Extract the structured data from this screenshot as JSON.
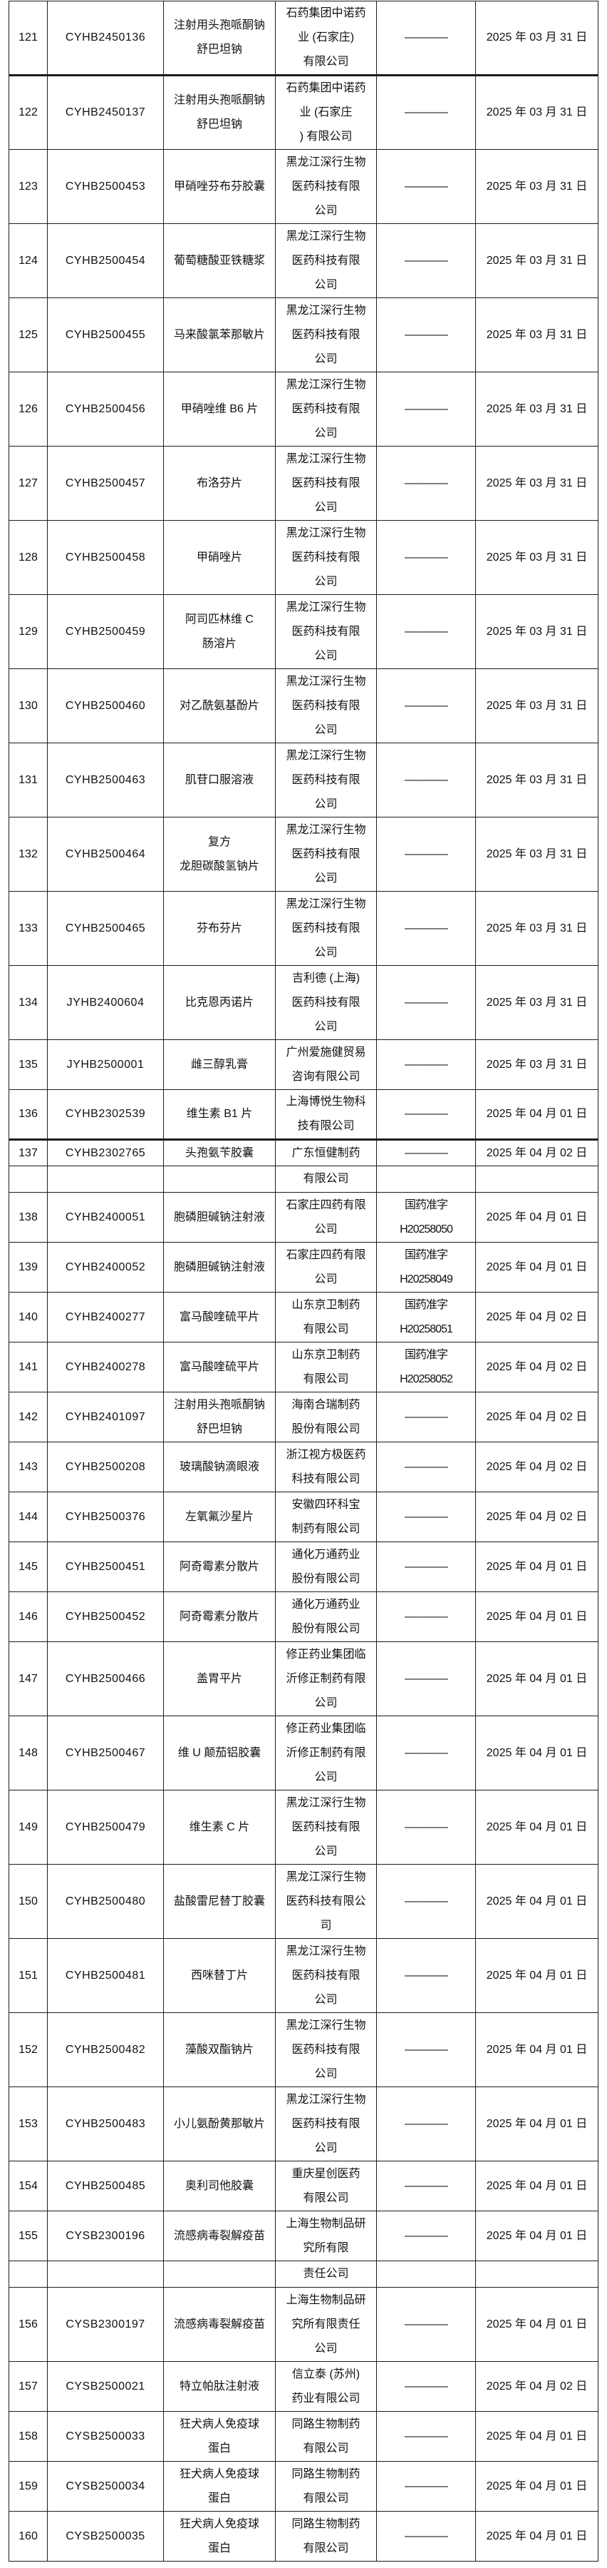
{
  "table": {
    "rows": [
      {
        "no": "121",
        "id": "CYHB2450136",
        "drug": "注射用头孢哌酮钠\n舒巴坦钠",
        "company": "石药集团中诺药\n业 (石家庄)\n有限公司",
        "approval": "————",
        "date": "2025 年 03 月 31 日",
        "thick_top": false
      },
      {
        "no": "122",
        "id": "CYHB2450137",
        "drug": "注射用头孢哌酮钠\n舒巴坦钠",
        "company": "石药集团中诺药\n业 (石家庄\n) 有限公司",
        "approval": "————",
        "date": "2025 年 03 月 31 日",
        "thick_top": true
      },
      {
        "no": "123",
        "id": "CYHB2500453",
        "drug": "甲硝唑芬布芬胶囊",
        "company": "黑龙江深行生物\n医药科技有限\n公司",
        "approval": "————",
        "date": "2025 年 03 月 31 日",
        "thick_top": false
      },
      {
        "no": "124",
        "id": "CYHB2500454",
        "drug": "葡萄糖酸亚铁糖浆",
        "company": "黑龙江深行生物\n医药科技有限\n公司",
        "approval": "————",
        "date": "2025 年 03 月 31 日",
        "thick_top": false
      },
      {
        "no": "125",
        "id": "CYHB2500455",
        "drug": "马来酸氯苯那敏片",
        "company": "黑龙江深行生物\n医药科技有限\n公司",
        "approval": "————",
        "date": "2025 年 03 月 31 日",
        "thick_top": false
      },
      {
        "no": "126",
        "id": "CYHB2500456",
        "drug": "甲硝唑维 B6 片",
        "company": "黑龙江深行生物\n医药科技有限\n公司",
        "approval": "————",
        "date": "2025 年 03 月 31 日",
        "thick_top": false
      },
      {
        "no": "127",
        "id": "CYHB2500457",
        "drug": "布洛芬片",
        "company": "黑龙江深行生物\n医药科技有限\n公司",
        "approval": "————",
        "date": "2025 年 03 月 31 日",
        "thick_top": false
      },
      {
        "no": "128",
        "id": "CYHB2500458",
        "drug": "甲硝唑片",
        "company": "黑龙江深行生物\n医药科技有限\n公司",
        "approval": "————",
        "date": "2025 年 03 月 31 日",
        "thick_top": false
      },
      {
        "no": "129",
        "id": "CYHB2500459",
        "drug": "阿司匹林维 C\n肠溶片",
        "company": "黑龙江深行生物\n医药科技有限\n公司",
        "approval": "————",
        "date": "2025 年 03 月 31 日",
        "thick_top": false
      },
      {
        "no": "130",
        "id": "CYHB2500460",
        "drug": "对乙酰氨基酚片",
        "company": "黑龙江深行生物\n医药科技有限\n公司",
        "approval": "————",
        "date": "2025 年 03 月 31 日",
        "thick_top": false
      },
      {
        "no": "131",
        "id": "CYHB2500463",
        "drug": "肌苷口服溶液",
        "company": "黑龙江深行生物\n医药科技有限\n公司",
        "approval": "————",
        "date": "2025 年 03 月 31 日",
        "thick_top": false
      },
      {
        "no": "132",
        "id": "CYHB2500464",
        "drug": "复方\n龙胆碳酸氢钠片",
        "company": "黑龙江深行生物\n医药科技有限\n公司",
        "approval": "————",
        "date": "2025 年 03 月 31 日",
        "thick_top": false
      },
      {
        "no": "133",
        "id": "CYHB2500465",
        "drug": "芬布芬片",
        "company": "黑龙江深行生物\n医药科技有限\n公司",
        "approval": "————",
        "date": "2025 年 03 月 31 日",
        "thick_top": false
      },
      {
        "no": "134",
        "id": "JYHB2400604",
        "drug": "比克恩丙诺片",
        "company": "吉利德 (上海)\n医药科技有限\n公司",
        "approval": "————",
        "date": "2025 年 03 月 31 日",
        "thick_top": false
      },
      {
        "no": "135",
        "id": "JYHB2500001",
        "drug": "雌三醇乳膏",
        "company": "广州爱施健贸易\n咨询有限公司",
        "approval": "————",
        "date": "2025 年 03 月 31 日",
        "thick_top": false
      },
      {
        "no": "136",
        "id": "CYHB2302539",
        "drug": "维生素 B1 片",
        "company": "上海博悦生物科\n技有限公司",
        "approval": "————",
        "date": "2025 年 04 月 01 日",
        "thick_top": false
      },
      {
        "no": "137",
        "id": "CYHB2302765",
        "drug": "头孢氨苄胶囊",
        "company": "广东恒健制药",
        "approval": "————",
        "date": "2025 年 04 月 02 日",
        "thick_top": true
      },
      {
        "no": "",
        "id": "",
        "drug": "",
        "company": "有限公司",
        "approval": "",
        "date": "",
        "thick_top": false
      },
      {
        "no": "138",
        "id": "CYHB2400051",
        "drug": "胞磷胆碱钠注射液",
        "company": "石家庄四药有限\n公司",
        "approval": "国药准字\nH20258050",
        "date": "2025 年 04 月 01 日",
        "thick_top": false
      },
      {
        "no": "139",
        "id": "CYHB2400052",
        "drug": "胞磷胆碱钠注射液",
        "company": "石家庄四药有限\n公司",
        "approval": "国药准字\nH20258049",
        "date": "2025 年 04 月 01 日",
        "thick_top": false
      },
      {
        "no": "140",
        "id": "CYHB2400277",
        "drug": "富马酸喹硫平片",
        "company": "山东京卫制药\n有限公司",
        "approval": "国药准字\nH20258051",
        "date": "2025 年 04 月 02 日",
        "thick_top": false
      },
      {
        "no": "141",
        "id": "CYHB2400278",
        "drug": "富马酸喹硫平片",
        "company": "山东京卫制药\n有限公司",
        "approval": "国药准字\nH20258052",
        "date": "2025 年 04 月 02 日",
        "thick_top": false
      },
      {
        "no": "142",
        "id": "CYHB2401097",
        "drug": "注射用头孢哌酮钠\n舒巴坦钠",
        "company": "海南合瑞制药\n股份有限公司",
        "approval": "————",
        "date": "2025 年 04 月 02 日",
        "thick_top": false
      },
      {
        "no": "143",
        "id": "CYHB2500208",
        "drug": "玻璃酸钠滴眼液",
        "company": "浙江视方极医药\n科技有限公司",
        "approval": "————",
        "date": "2025 年 04 月 02 日",
        "thick_top": false
      },
      {
        "no": "144",
        "id": "CYHB2500376",
        "drug": "左氧氟沙星片",
        "company": "安徽四环科宝\n制药有限公司",
        "approval": "————",
        "date": "2025 年 04 月 02 日",
        "thick_top": false
      },
      {
        "no": "145",
        "id": "CYHB2500451",
        "drug": "阿奇霉素分散片",
        "company": "通化万通药业\n股份有限公司",
        "approval": "————",
        "date": "2025 年 04 月 01 日",
        "thick_top": false
      },
      {
        "no": "146",
        "id": "CYHB2500452",
        "drug": "阿奇霉素分散片",
        "company": "通化万通药业\n股份有限公司",
        "approval": "————",
        "date": "2025 年 04 月 01 日",
        "thick_top": false
      },
      {
        "no": "147",
        "id": "CYHB2500466",
        "drug": "盖胃平片",
        "company": "修正药业集团临\n沂修正制药有限\n公司",
        "approval": "————",
        "date": "2025 年 04 月 01 日",
        "thick_top": false
      },
      {
        "no": "148",
        "id": "CYHB2500467",
        "drug": "维 U 颠茄铝胶囊",
        "company": "修正药业集团临\n沂修正制药有限\n公司",
        "approval": "————",
        "date": "2025 年 04 月 01 日",
        "thick_top": false
      },
      {
        "no": "149",
        "id": "CYHB2500479",
        "drug": "维生素 C 片",
        "company": "黑龙江深行生物\n医药科技有限\n公司",
        "approval": "————",
        "date": "2025 年 04 月 01 日",
        "thick_top": false
      },
      {
        "no": "150",
        "id": "CYHB2500480",
        "drug": "盐酸雷尼替丁胶囊",
        "company": "黑龙江深行生物\n医药科技有限公\n司",
        "approval": "————",
        "date": "2025 年 04 月 01 日",
        "thick_top": false
      },
      {
        "no": "151",
        "id": "CYHB2500481",
        "drug": "西咪替丁片",
        "company": "黑龙江深行生物\n医药科技有限\n公司",
        "approval": "————",
        "date": "2025 年 04 月 01 日",
        "thick_top": false
      },
      {
        "no": "152",
        "id": "CYHB2500482",
        "drug": "藻酸双酯钠片",
        "company": "黑龙江深行生物\n医药科技有限\n公司",
        "approval": "————",
        "date": "2025 年 04 月 01 日",
        "thick_top": false
      },
      {
        "no": "153",
        "id": "CYHB2500483",
        "drug": "小儿氨酚黄那敏片",
        "company": "黑龙江深行生物\n医药科技有限\n公司",
        "approval": "————",
        "date": "2025 年 04 月 01 日",
        "thick_top": false
      },
      {
        "no": "154",
        "id": "CYHB2500485",
        "drug": "奥利司他胶囊",
        "company": "重庆星创医药\n有限公司",
        "approval": "————",
        "date": "2025 年 04 月 01 日",
        "thick_top": false
      },
      {
        "no": "155",
        "id": "CYSB2300196",
        "drug": "流感病毒裂解疫苗",
        "company": "上海生物制品研\n究所有限",
        "approval": "————",
        "date": "2025 年 04 月 01 日",
        "thick_top": false
      },
      {
        "no": "",
        "id": "",
        "drug": "",
        "company": "责任公司",
        "approval": "",
        "date": "",
        "thick_top": false
      },
      {
        "no": "156",
        "id": "CYSB2300197",
        "drug": "流感病毒裂解疫苗",
        "company": "上海生物制品研\n究所有限责任\n公司",
        "approval": "————",
        "date": "2025 年 04 月 01 日",
        "thick_top": false
      },
      {
        "no": "157",
        "id": "CYSB2500021",
        "drug": "特立帕肽注射液",
        "company": "信立泰 (苏州)\n药业有限公司",
        "approval": "————",
        "date": "2025 年 04 月 02 日",
        "thick_top": false
      },
      {
        "no": "158",
        "id": "CYSB2500033",
        "drug": "狂犬病人免疫球\n蛋白",
        "company": "同路生物制药\n有限公司",
        "approval": "————",
        "date": "2025 年 04 月 01 日",
        "thick_top": false
      },
      {
        "no": "159",
        "id": "CYSB2500034",
        "drug": "狂犬病人免疫球\n蛋白",
        "company": "同路生物制药\n有限公司",
        "approval": "————",
        "date": "2025 年 04 月 01 日",
        "thick_top": false
      },
      {
        "no": "160",
        "id": "CYSB2500035",
        "drug": "狂犬病人免疫球\n蛋白",
        "company": "同路生物制药\n有限公司",
        "approval": "————",
        "date": "2025 年 04 月 01 日",
        "thick_top": false
      }
    ]
  },
  "colors": {
    "background": "#ffffff",
    "border": "#1c1c1c",
    "text": "#111111"
  }
}
